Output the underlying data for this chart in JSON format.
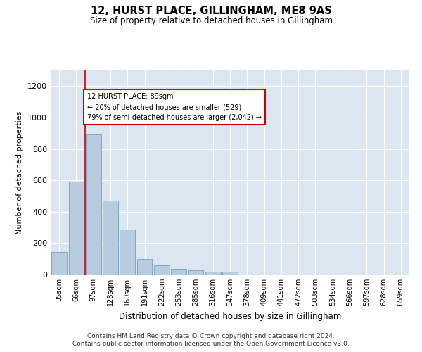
{
  "title": "12, HURST PLACE, GILLINGHAM, ME8 9AS",
  "subtitle": "Size of property relative to detached houses in Gillingham",
  "xlabel": "Distribution of detached houses by size in Gillingham",
  "ylabel": "Number of detached properties",
  "categories": [
    "35sqm",
    "66sqm",
    "97sqm",
    "128sqm",
    "160sqm",
    "191sqm",
    "222sqm",
    "253sqm",
    "285sqm",
    "316sqm",
    "347sqm",
    "378sqm",
    "409sqm",
    "441sqm",
    "472sqm",
    "503sqm",
    "534sqm",
    "566sqm",
    "597sqm",
    "628sqm",
    "659sqm"
  ],
  "values": [
    145,
    590,
    890,
    470,
    285,
    100,
    60,
    37,
    25,
    20,
    20,
    0,
    0,
    0,
    0,
    0,
    0,
    0,
    0,
    0,
    0
  ],
  "bar_color": "#b8ccdf",
  "bar_edge_color": "#7aaac8",
  "redline_color": "#cc0000",
  "annotation_text": "12 HURST PLACE: 89sqm\n← 20% of detached houses are smaller (529)\n79% of semi-detached houses are larger (2,042) →",
  "annotation_box_color": "#ffffff",
  "annotation_box_edge": "#cc0000",
  "ylim": [
    0,
    1300
  ],
  "yticks": [
    0,
    200,
    400,
    600,
    800,
    1000,
    1200
  ],
  "bg_color": "#dce6f0",
  "footer1": "Contains HM Land Registry data © Crown copyright and database right 2024.",
  "footer2": "Contains public sector information licensed under the Open Government Licence v3.0."
}
